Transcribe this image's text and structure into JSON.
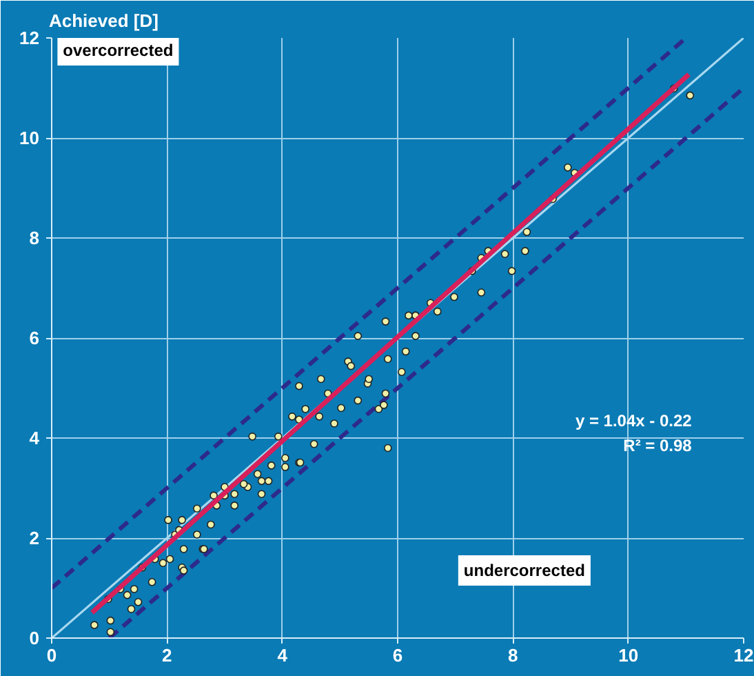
{
  "chart_data": {
    "type": "scatter",
    "ylabel": "Achieved [D]",
    "xlim": [
      0,
      12
    ],
    "ylim": [
      0,
      12
    ],
    "xticks": [
      0,
      2,
      4,
      6,
      8,
      10,
      12
    ],
    "yticks": [
      0,
      2,
      4,
      6,
      8,
      10,
      12
    ],
    "grid": true,
    "marker": "circle",
    "annotations": [
      "overcorrected",
      "undercorrected",
      "y = 1.04x - 0.22",
      "R² = 0.98"
    ],
    "series": [
      {
        "type": "line",
        "marker": "none",
        "color": "#a8d8f0",
        "line_style": "solid",
        "x": [
          0,
          12
        ],
        "values": [
          0,
          12
        ]
      },
      {
        "type": "line",
        "marker": "none",
        "color": "#2e2a8c",
        "line_style": "dashed",
        "x": [
          0,
          11
        ],
        "values": [
          1,
          12
        ]
      },
      {
        "type": "line",
        "marker": "none",
        "color": "#2e2a8c",
        "line_style": "dashed",
        "x": [
          1,
          12
        ],
        "values": [
          0,
          11
        ]
      },
      {
        "color": "#eef0a8",
        "x": [
          0.74,
          1.02,
          1.02,
          0.98,
          1.19,
          1.31,
          1.43,
          1.5,
          1.38,
          1.57,
          1.74,
          1.79,
          1.93,
          2.05,
          2.14,
          2.26,
          2.29,
          2.21,
          2.62,
          2.52,
          2.76,
          3.48,
          3.93,
          4.17,
          4.29,
          4.67,
          4.79,
          5.14,
          5.19,
          5.31,
          5.79,
          6.19,
          6.31,
          6.14,
          6.07,
          5.79,
          5.67,
          5.31,
          5.02,
          4.9,
          4.55,
          4.29,
          4.05,
          3.81,
          3.64,
          3.4,
          3.17,
          3.0,
          2.86,
          5.48,
          5.5,
          5.83,
          4.64,
          4.4,
          4.29,
          8.69,
          8.24,
          8.21,
          7.86,
          7.98,
          7.57,
          7.45,
          7.29,
          7.45,
          6.98,
          6.57,
          6.69,
          6.31,
          6.31,
          8.95,
          9.07,
          10.79,
          11.07,
          2.02,
          2.26,
          2.52,
          2.81,
          3.0,
          3.33,
          3.57,
          3.76,
          4.05,
          4.31,
          2.29,
          2.64,
          3.17,
          3.64,
          5.76,
          5.83
        ],
        "values": [
          0.26,
          0.35,
          0.12,
          0.78,
          0.98,
          0.86,
          0.98,
          0.72,
          0.58,
          1.41,
          1.12,
          1.58,
          1.5,
          1.58,
          2.07,
          1.41,
          1.78,
          2.16,
          1.78,
          2.07,
          2.27,
          4.03,
          4.03,
          4.43,
          5.04,
          5.18,
          4.89,
          5.53,
          5.44,
          6.04,
          6.33,
          6.45,
          6.45,
          5.73,
          5.32,
          4.89,
          4.58,
          4.75,
          4.6,
          4.29,
          3.88,
          3.51,
          3.42,
          3.45,
          3.14,
          3.02,
          2.88,
          2.85,
          2.65,
          5.09,
          5.18,
          5.58,
          4.43,
          4.58,
          4.37,
          8.78,
          8.12,
          7.74,
          7.68,
          7.34,
          7.74,
          7.6,
          7.34,
          6.91,
          6.82,
          6.7,
          6.53,
          6.45,
          6.04,
          9.41,
          9.3,
          10.99,
          10.85,
          2.36,
          2.36,
          2.59,
          2.85,
          3.02,
          3.08,
          3.28,
          3.14,
          3.6,
          3.51,
          1.35,
          1.78,
          2.65,
          2.88,
          4.66,
          3.8
        ]
      },
      {
        "type": "line",
        "marker": "none",
        "color": "#d8205a",
        "line_style": "solid",
        "x": [
          0.7,
          11.05
        ],
        "values": [
          0.51,
          11.27
        ]
      }
    ]
  }
}
